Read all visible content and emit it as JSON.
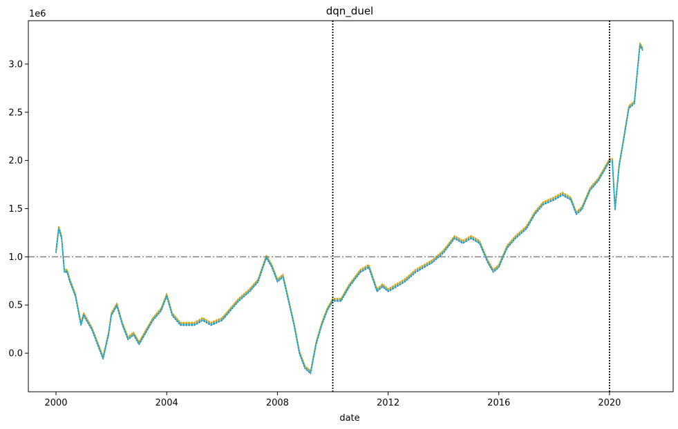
{
  "chart_data": {
    "type": "line",
    "title": "dqn_duel",
    "xlabel": "date",
    "ylabel": "",
    "y_offset_label": "1e6",
    "xlim": [
      1999.0,
      2022.3
    ],
    "ylim": [
      -0.4,
      3.45
    ],
    "x_ticks": [
      2000,
      2004,
      2008,
      2012,
      2016,
      2020
    ],
    "x_tick_labels": [
      "2000",
      "2004",
      "2008",
      "2012",
      "2016",
      "2020"
    ],
    "y_ticks": [
      0.0,
      0.5,
      1.0,
      1.5,
      2.0,
      2.5,
      3.0
    ],
    "y_tick_labels": [
      "0.0",
      "0.5",
      "1.0",
      "1.5",
      "2.0",
      "2.5",
      "3.0"
    ],
    "grid": false,
    "reference_hline": {
      "y": 1.0,
      "color": "#808080",
      "style": "dashdot"
    },
    "reference_vlines": [
      {
        "x": 2010.0,
        "color": "#000000",
        "style": "dotted"
      },
      {
        "x": 2020.0,
        "color": "#000000",
        "style": "dotted"
      }
    ],
    "x": [
      2000.0,
      2000.1,
      2000.2,
      2000.3,
      2000.4,
      2000.5,
      2000.7,
      2000.9,
      2001.0,
      2001.1,
      2001.3,
      2001.5,
      2001.7,
      2001.9,
      2002.0,
      2002.2,
      2002.4,
      2002.6,
      2002.8,
      2003.0,
      2003.2,
      2003.5,
      2003.8,
      2004.0,
      2004.2,
      2004.5,
      2004.8,
      2005.0,
      2005.3,
      2005.6,
      2006.0,
      2006.3,
      2006.6,
      2007.0,
      2007.3,
      2007.6,
      2007.8,
      2008.0,
      2008.2,
      2008.4,
      2008.6,
      2008.8,
      2009.0,
      2009.2,
      2009.4,
      2009.6,
      2009.8,
      2010.0,
      2010.3,
      2010.6,
      2011.0,
      2011.3,
      2011.6,
      2011.8,
      2012.0,
      2012.3,
      2012.6,
      2013.0,
      2013.3,
      2013.6,
      2014.0,
      2014.4,
      2014.7,
      2015.0,
      2015.3,
      2015.6,
      2015.8,
      2016.0,
      2016.3,
      2016.6,
      2017.0,
      2017.3,
      2017.6,
      2018.0,
      2018.3,
      2018.6,
      2018.8,
      2019.0,
      2019.3,
      2019.6,
      2020.0,
      2020.1,
      2020.2,
      2020.35,
      2020.5,
      2020.7,
      2020.9,
      2021.0,
      2021.1,
      2021.2
    ],
    "series": [
      {
        "color": "#17becf",
        "values": [
          1.05,
          1.3,
          1.2,
          0.85,
          0.85,
          0.75,
          0.6,
          0.3,
          0.4,
          0.35,
          0.25,
          0.1,
          -0.05,
          0.2,
          0.4,
          0.5,
          0.3,
          0.15,
          0.2,
          0.1,
          0.2,
          0.35,
          0.45,
          0.6,
          0.4,
          0.3,
          0.3,
          0.3,
          0.35,
          0.3,
          0.35,
          0.45,
          0.55,
          0.65,
          0.75,
          1.0,
          0.9,
          0.75,
          0.8,
          0.55,
          0.3,
          0.0,
          -0.15,
          -0.2,
          0.1,
          0.3,
          0.45,
          0.55,
          0.55,
          0.7,
          0.85,
          0.9,
          0.65,
          0.7,
          0.65,
          0.7,
          0.75,
          0.85,
          0.9,
          0.95,
          1.05,
          1.2,
          1.15,
          1.2,
          1.15,
          0.95,
          0.85,
          0.9,
          1.1,
          1.2,
          1.3,
          1.45,
          1.55,
          1.6,
          1.65,
          1.6,
          1.45,
          1.5,
          1.7,
          1.8,
          2.0,
          2.0,
          1.5,
          1.95,
          2.2,
          2.55,
          2.6,
          2.9,
          3.2,
          3.15
        ]
      },
      {
        "color": "#bcbd22",
        "values": [
          1.07,
          1.32,
          1.22,
          0.87,
          0.87,
          0.77,
          0.62,
          0.32,
          0.42,
          0.37,
          0.27,
          0.12,
          -0.03,
          0.22,
          0.42,
          0.52,
          0.32,
          0.17,
          0.22,
          0.12,
          0.22,
          0.37,
          0.47,
          0.62,
          0.42,
          0.32,
          0.32,
          0.32,
          0.37,
          0.32,
          0.37,
          0.47,
          0.57,
          0.67,
          0.77,
          1.02,
          0.92,
          0.77,
          0.82,
          0.57,
          0.32,
          0.02,
          -0.13,
          -0.18,
          0.12,
          0.32,
          0.47,
          0.57,
          0.57,
          0.72,
          0.87,
          0.92,
          0.67,
          0.72,
          0.67,
          0.72,
          0.77,
          0.87,
          0.92,
          0.97,
          1.07,
          1.22,
          1.17,
          1.22,
          1.17,
          0.97,
          0.87,
          0.92,
          1.12,
          1.22,
          1.32,
          1.47,
          1.57,
          1.62,
          1.67,
          1.62,
          1.47,
          1.52,
          1.72,
          1.82,
          2.02,
          2.02,
          1.52,
          1.97,
          2.22,
          2.57,
          2.62,
          2.92,
          3.22,
          3.17
        ]
      },
      {
        "color": "#ff7f0e",
        "values": [
          1.06,
          1.31,
          1.21,
          0.86,
          0.86,
          0.76,
          0.61,
          0.31,
          0.41,
          0.36,
          0.26,
          0.11,
          -0.04,
          0.21,
          0.41,
          0.51,
          0.31,
          0.16,
          0.21,
          0.11,
          0.21,
          0.36,
          0.46,
          0.61,
          0.41,
          0.31,
          0.31,
          0.31,
          0.36,
          0.31,
          0.36,
          0.46,
          0.56,
          0.66,
          0.76,
          1.01,
          0.91,
          0.76,
          0.81,
          0.56,
          0.31,
          0.01,
          -0.14,
          -0.19,
          0.11,
          0.31,
          0.46,
          0.56,
          0.56,
          0.71,
          0.86,
          0.91,
          0.66,
          0.71,
          0.66,
          0.71,
          0.76,
          0.86,
          0.91,
          0.96,
          1.06,
          1.21,
          1.16,
          1.21,
          1.16,
          0.96,
          0.86,
          0.91,
          1.11,
          1.21,
          1.31,
          1.46,
          1.56,
          1.61,
          1.66,
          1.61,
          1.46,
          1.51,
          1.71,
          1.81,
          2.01,
          2.01,
          1.51,
          1.96,
          2.21,
          2.56,
          2.61,
          2.91,
          3.21,
          3.16
        ]
      },
      {
        "color": "#1f77b4",
        "values": [
          1.04,
          1.29,
          1.19,
          0.84,
          0.84,
          0.74,
          0.59,
          0.29,
          0.39,
          0.34,
          0.24,
          0.09,
          -0.06,
          0.19,
          0.39,
          0.49,
          0.29,
          0.14,
          0.19,
          0.09,
          0.19,
          0.34,
          0.44,
          0.59,
          0.39,
          0.29,
          0.29,
          0.29,
          0.34,
          0.29,
          0.34,
          0.44,
          0.54,
          0.64,
          0.74,
          0.99,
          0.89,
          0.74,
          0.79,
          0.54,
          0.29,
          -0.01,
          -0.16,
          -0.21,
          0.09,
          0.29,
          0.44,
          0.54,
          0.54,
          0.69,
          0.84,
          0.89,
          0.64,
          0.69,
          0.64,
          0.69,
          0.74,
          0.84,
          0.89,
          0.94,
          1.04,
          1.19,
          1.14,
          1.19,
          1.14,
          0.94,
          0.84,
          0.89,
          1.09,
          1.19,
          1.29,
          1.44,
          1.54,
          1.59,
          1.64,
          1.59,
          1.44,
          1.49,
          1.69,
          1.79,
          1.99,
          1.99,
          1.49,
          1.94,
          2.19,
          2.54,
          2.59,
          2.89,
          3.19,
          3.14
        ]
      }
    ]
  }
}
